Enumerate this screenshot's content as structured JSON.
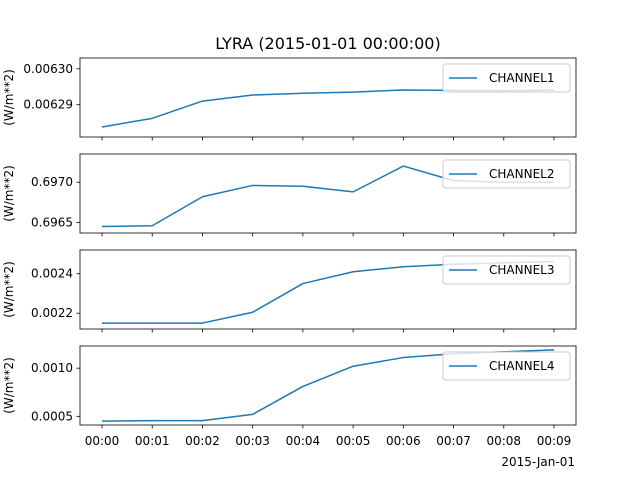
{
  "chart_data": {
    "type": "line",
    "title": "LYRA (2015-01-01 00:00:00)",
    "x": [
      "00:00",
      "00:01",
      "00:02",
      "00:03",
      "00:04",
      "00:05",
      "00:06",
      "00:07",
      "00:08",
      "00:09"
    ],
    "x_tick_labels": [
      "00:00",
      "00:01",
      "00:02",
      "00:03",
      "00:04",
      "00:05",
      "00:06",
      "00:07",
      "00:08",
      "00:09"
    ],
    "x_offset_label": "2015-Jan-01",
    "line_color": "#1f77b4",
    "legend_position": "upper right",
    "grid": false,
    "panels": [
      {
        "series_name": "CHANNEL1",
        "ylabel": "(W/m**2)",
        "ylim": [
          0.006281,
          0.006303
        ],
        "yticks": [
          0.00629,
          0.0063
        ],
        "ytick_labels": [
          "0.00629",
          "0.00630"
        ],
        "values": [
          0.0062838,
          0.0062862,
          0.006291,
          0.0062927,
          0.0062932,
          0.0062935,
          0.0062941,
          0.006294,
          0.0062939,
          0.0062941
        ]
      },
      {
        "series_name": "CHANNEL2",
        "ylabel": "(W/m**2)",
        "ylim": [
          0.69637,
          0.69735
        ],
        "yticks": [
          0.6965,
          0.697
        ],
        "ytick_labels": [
          "0.6965",
          "0.6970"
        ],
        "values": [
          0.69645,
          0.69646,
          0.69682,
          0.69696,
          0.69695,
          0.69688,
          0.6972,
          0.69702,
          0.697,
          0.697
        ]
      },
      {
        "series_name": "CHANNEL3",
        "ylabel": "(W/m**2)",
        "ylim": [
          0.00212,
          0.00252
        ],
        "yticks": [
          0.0022,
          0.0024
        ],
        "ytick_labels": [
          "0.0022",
          "0.0024"
        ],
        "values": [
          0.00215,
          0.00215,
          0.00215,
          0.002205,
          0.00235,
          0.00241,
          0.002435,
          0.002448,
          0.002455,
          0.002462
        ]
      },
      {
        "series_name": "CHANNEL4",
        "ylabel": "(W/m**2)",
        "ylim": [
          0.00041,
          0.00123
        ],
        "yticks": [
          0.0005,
          0.001
        ],
        "ytick_labels": [
          "0.0005",
          "0.0010"
        ],
        "values": [
          0.00045,
          0.000455,
          0.000455,
          0.00052,
          0.00081,
          0.00102,
          0.00111,
          0.00115,
          0.00117,
          0.00119
        ]
      }
    ]
  }
}
